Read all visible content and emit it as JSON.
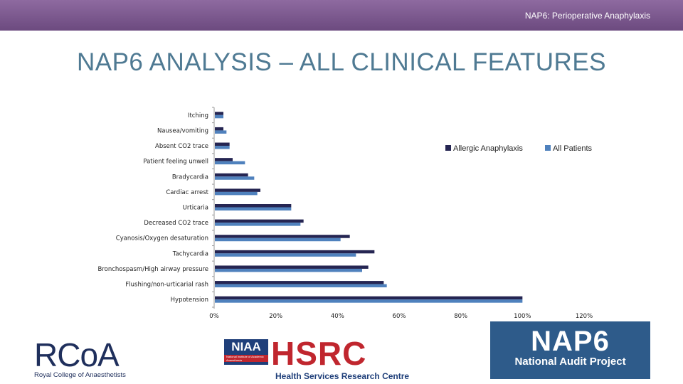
{
  "header": {
    "text": "NAP6: Perioperative Anaphylaxis"
  },
  "title": "NAP6 ANALYSIS – ALL CLINICAL FEATURES",
  "colors": {
    "allergic": "#252552",
    "all": "#4f81bd",
    "topbar": "#7b5a8e",
    "title": "#4f7a93"
  },
  "chart_data": {
    "type": "bar",
    "orientation": "horizontal",
    "categories": [
      "Itching",
      "Nausea/vomiting",
      "Absent CO2 trace",
      "Patient feeling unwell",
      "Bradycardia",
      "Cardiac arrest",
      "Urticaria",
      "Decreased CO2 trace",
      "Cyanosis/Oxygen desaturation",
      "Tachycardia",
      "Bronchospasm/High airway pressure",
      "Flushing/non-urticarial rash",
      "Hypotension"
    ],
    "series": [
      {
        "name": "Allergic Anaphylaxis",
        "values": [
          3,
          3,
          5,
          6,
          11,
          15,
          25,
          29,
          44,
          52,
          50,
          55,
          100
        ]
      },
      {
        "name": "All Patients",
        "values": [
          3,
          4,
          5,
          10,
          13,
          14,
          25,
          28,
          41,
          46,
          48,
          56,
          100
        ]
      }
    ],
    "xticks": [
      "0%",
      "20%",
      "40%",
      "60%",
      "80%",
      "100%",
      "120%"
    ],
    "xlim": [
      0,
      120
    ],
    "legend_position": "right"
  },
  "logos": {
    "rcoa_mark": "RCoA",
    "rcoa_sub": "Royal College of Anaesthetists",
    "niaa": "NIAA",
    "niaa_sub": "National Institute of Academic Anaesthesia",
    "hsrc": "HSRC",
    "hsrc_sub": "Health Services Research Centre",
    "nap6": "NAP6",
    "nap6_sub": "National Audit Project"
  }
}
